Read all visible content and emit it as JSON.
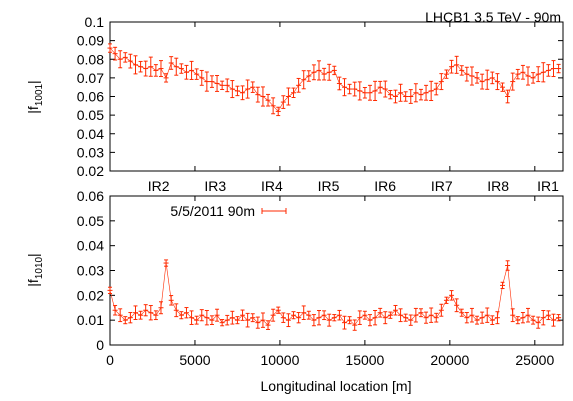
{
  "figure_title": "LHCB1 3.5 TeV - 90m",
  "ir_labels": [
    {
      "label": "IR2",
      "x": 3332
    },
    {
      "label": "IR3",
      "x": 6665
    },
    {
      "label": "IR4",
      "x": 9997
    },
    {
      "label": "IR5",
      "x": 13329
    },
    {
      "label": "IR6",
      "x": 16661
    },
    {
      "label": "IR7",
      "x": 19994
    },
    {
      "label": "IR8",
      "x": 23315
    },
    {
      "label": "IR1",
      "x": 26659
    }
  ],
  "chart_data": [
    {
      "type": "scatter",
      "id": "f1001",
      "ylabel": "|f1001|",
      "ylabel_main": "|f",
      "ylabel_sub": "1001",
      "ylabel_close": "|",
      "xlim": [
        0,
        26659
      ],
      "ylim": [
        0.02,
        0.1
      ],
      "yticks": [
        "0.02",
        "0.03",
        "0.04",
        "0.05",
        "0.06",
        "0.07",
        "0.08",
        "0.09",
        "0.1"
      ],
      "ytick_values": [
        0.02,
        0.03,
        0.04,
        0.05,
        0.06,
        0.07,
        0.08,
        0.09,
        0.1
      ],
      "color": "#ff2a00",
      "series": [
        {
          "x": [
            0,
            300,
            600,
            900,
            1200,
            1500,
            1800,
            2100,
            2400,
            2700,
            3000,
            3300,
            3600,
            3900,
            4200,
            4500,
            4800,
            5100,
            5400,
            5700,
            6000,
            6300,
            6600,
            6900,
            7200,
            7500,
            7800,
            8100,
            8400,
            8700,
            9000,
            9300,
            9600,
            9900,
            10200,
            10500,
            10800,
            11100,
            11400,
            11700,
            12000,
            12300,
            12600,
            12900,
            13200,
            13500,
            13800,
            14100,
            14400,
            14700,
            15000,
            15300,
            15600,
            15900,
            16200,
            16500,
            16800,
            17100,
            17400,
            17700,
            18000,
            18300,
            18600,
            18900,
            19200,
            19500,
            19800,
            20100,
            20400,
            20700,
            21000,
            21300,
            21600,
            21900,
            22200,
            22500,
            22800,
            23100,
            23400,
            23700,
            24000,
            24300,
            24600,
            24900,
            25200,
            25500,
            25800,
            26100,
            26400
          ],
          "y": [
            0.086,
            0.083,
            0.08,
            0.081,
            0.079,
            0.077,
            0.076,
            0.075,
            0.076,
            0.074,
            0.075,
            0.07,
            0.078,
            0.076,
            0.075,
            0.073,
            0.074,
            0.072,
            0.07,
            0.068,
            0.068,
            0.067,
            0.066,
            0.066,
            0.064,
            0.063,
            0.062,
            0.064,
            0.065,
            0.061,
            0.06,
            0.058,
            0.055,
            0.052,
            0.057,
            0.06,
            0.062,
            0.066,
            0.069,
            0.071,
            0.073,
            0.074,
            0.072,
            0.073,
            0.074,
            0.067,
            0.065,
            0.064,
            0.064,
            0.063,
            0.062,
            0.062,
            0.063,
            0.065,
            0.064,
            0.061,
            0.06,
            0.062,
            0.06,
            0.06,
            0.062,
            0.061,
            0.062,
            0.063,
            0.064,
            0.068,
            0.072,
            0.076,
            0.077,
            0.074,
            0.072,
            0.071,
            0.07,
            0.068,
            0.069,
            0.07,
            0.068,
            0.065,
            0.06,
            0.068,
            0.072,
            0.073,
            0.071,
            0.07,
            0.072,
            0.073,
            0.074,
            0.075,
            0.075
          ]
        }
      ]
    },
    {
      "type": "scatter",
      "id": "f1010",
      "xlabel": "Longitudinal location [m]",
      "ylabel": "|f1010|",
      "ylabel_main": "|f",
      "ylabel_sub": "1010",
      "ylabel_close": "|",
      "legend": "5/5/2011 90m",
      "legend_position": "top-left",
      "xlim": [
        0,
        26659
      ],
      "ylim": [
        0,
        0.06
      ],
      "xticks": [
        "0",
        "5000",
        "10000",
        "15000",
        "20000",
        "25000"
      ],
      "xtick_values": [
        0,
        5000,
        10000,
        15000,
        20000,
        25000
      ],
      "yticks": [
        "0",
        "0.01",
        "0.02",
        "0.03",
        "0.04",
        "0.05",
        "0.06"
      ],
      "ytick_values": [
        0,
        0.01,
        0.02,
        0.03,
        0.04,
        0.05,
        0.06
      ],
      "color": "#ff2a00",
      "series": [
        {
          "name": "5/5/2011 90m",
          "x": [
            0,
            300,
            600,
            900,
            1200,
            1500,
            1800,
            2100,
            2400,
            2700,
            3000,
            3300,
            3600,
            3900,
            4200,
            4500,
            4800,
            5100,
            5400,
            5700,
            6000,
            6300,
            6600,
            6900,
            7200,
            7500,
            7800,
            8100,
            8400,
            8700,
            9000,
            9300,
            9600,
            9900,
            10200,
            10500,
            10800,
            11100,
            11400,
            11700,
            12000,
            12300,
            12600,
            12900,
            13200,
            13500,
            13800,
            14100,
            14400,
            14700,
            15000,
            15300,
            15600,
            15900,
            16200,
            16500,
            16800,
            17100,
            17400,
            17700,
            18000,
            18300,
            18600,
            18900,
            19200,
            19500,
            19800,
            20100,
            20400,
            20700,
            21000,
            21300,
            21600,
            21900,
            22200,
            22500,
            22800,
            23100,
            23400,
            23700,
            24000,
            24300,
            24600,
            24900,
            25200,
            25500,
            25800,
            26100,
            26400
          ],
          "y": [
            0.022,
            0.014,
            0.012,
            0.01,
            0.011,
            0.013,
            0.012,
            0.014,
            0.013,
            0.012,
            0.015,
            0.033,
            0.018,
            0.014,
            0.012,
            0.013,
            0.011,
            0.01,
            0.012,
            0.011,
            0.01,
            0.012,
            0.009,
            0.01,
            0.011,
            0.01,
            0.012,
            0.01,
            0.011,
            0.009,
            0.01,
            0.008,
            0.012,
            0.014,
            0.011,
            0.01,
            0.012,
            0.011,
            0.013,
            0.012,
            0.01,
            0.011,
            0.012,
            0.01,
            0.011,
            0.012,
            0.009,
            0.01,
            0.008,
            0.011,
            0.012,
            0.01,
            0.011,
            0.013,
            0.011,
            0.012,
            0.014,
            0.012,
            0.011,
            0.01,
            0.012,
            0.013,
            0.011,
            0.012,
            0.011,
            0.014,
            0.018,
            0.02,
            0.016,
            0.013,
            0.011,
            0.012,
            0.01,
            0.011,
            0.012,
            0.01,
            0.011,
            0.024,
            0.032,
            0.012,
            0.01,
            0.011,
            0.012,
            0.01,
            0.009,
            0.011,
            0.012,
            0.01,
            0.011
          ]
        }
      ]
    }
  ]
}
